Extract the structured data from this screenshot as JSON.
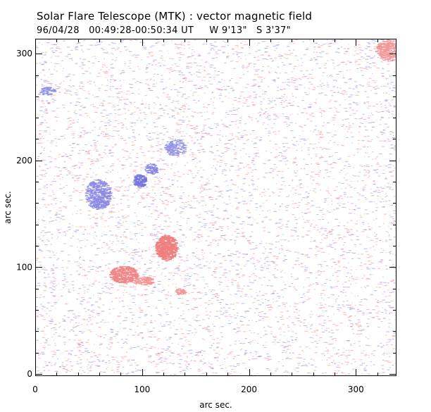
{
  "chart_data": {
    "type": "heatmap",
    "title": "Solar Flare Telescope (MTK) : vector magnetic field",
    "subtitle": "96/04/28   00:49:28-00:50:34 UT     W 9'13\"   S 3'37\"",
    "xlabel": "arc sec.",
    "ylabel": "arc sec.",
    "xlim": [
      0,
      338
    ],
    "ylim": [
      -2,
      314
    ],
    "xticks": [
      0,
      100,
      200,
      300
    ],
    "yticks": [
      0,
      100,
      200,
      300
    ],
    "xtick_labels": [
      "0",
      "100",
      "200",
      "300"
    ],
    "ytick_labels": [
      "0",
      "100",
      "200",
      "300"
    ],
    "positive_color": "#f08080",
    "negative_color": "#7070e0",
    "background_color": "#ffffff",
    "regions": [
      {
        "polarity": "positive",
        "label": "strong",
        "center": [
          122,
          118
        ],
        "radius": [
          10,
          12
        ],
        "strength": 1.0
      },
      {
        "polarity": "positive",
        "label": "strong",
        "center": [
          82,
          93
        ],
        "radius": [
          13,
          8
        ],
        "strength": 0.85
      },
      {
        "polarity": "positive",
        "label": "weak",
        "center": [
          100,
          87
        ],
        "radius": [
          10,
          4
        ],
        "strength": 0.6
      },
      {
        "polarity": "positive",
        "label": "weak",
        "center": [
          135,
          77
        ],
        "radius": [
          5,
          3
        ],
        "strength": 0.6
      },
      {
        "polarity": "positive",
        "label": "weak",
        "center": [
          330,
          303
        ],
        "radius": [
          12,
          10
        ],
        "strength": 0.55
      },
      {
        "polarity": "negative",
        "label": "strong",
        "center": [
          97,
          181
        ],
        "radius": [
          6,
          6
        ],
        "strength": 0.9
      },
      {
        "polarity": "negative",
        "label": "weak",
        "center": [
          108,
          192
        ],
        "radius": [
          6,
          5
        ],
        "strength": 0.6
      },
      {
        "polarity": "negative",
        "label": "weak",
        "center": [
          58,
          168
        ],
        "radius": [
          12,
          14
        ],
        "strength": 0.55
      },
      {
        "polarity": "negative",
        "label": "weak",
        "center": [
          130,
          212
        ],
        "radius": [
          10,
          8
        ],
        "strength": 0.4
      },
      {
        "polarity": "negative",
        "label": "weak",
        "center": [
          10,
          265
        ],
        "radius": [
          7,
          4
        ],
        "strength": 0.45
      }
    ]
  }
}
